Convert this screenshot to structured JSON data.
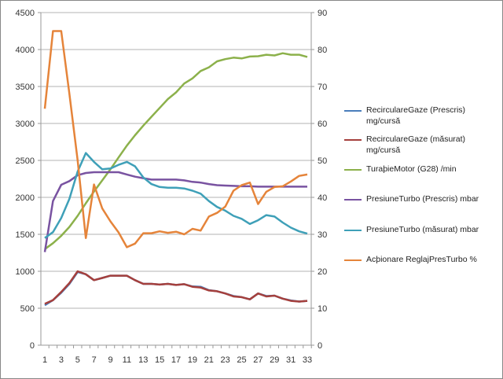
{
  "chart_data": {
    "type": "line",
    "title": "",
    "xlabel": "",
    "ylabel": "",
    "x": [
      1,
      2,
      3,
      4,
      5,
      6,
      7,
      8,
      9,
      10,
      11,
      12,
      13,
      14,
      15,
      16,
      17,
      18,
      19,
      20,
      21,
      22,
      23,
      24,
      25,
      26,
      27,
      28,
      29,
      30,
      31,
      32,
      33
    ],
    "x_tick_labels": [
      "1",
      "3",
      "5",
      "7",
      "9",
      "11",
      "13",
      "15",
      "17",
      "19",
      "21",
      "23",
      "25",
      "27",
      "29",
      "31",
      "33"
    ],
    "ylim": [
      0,
      4500
    ],
    "y_ticks": [
      "0",
      "500",
      "1000",
      "1500",
      "2000",
      "2500",
      "3000",
      "3500",
      "4000",
      "4500"
    ],
    "y2lim": [
      0,
      90
    ],
    "y2_ticks": [
      "0",
      "10",
      "20",
      "30",
      "40",
      "50",
      "60",
      "70",
      "80",
      "90"
    ],
    "grid": true,
    "legend_position": "right",
    "series": [
      {
        "name": "RecirculareGaze (Prescris) mg/cursă",
        "label_lines": [
          "RecirculareGaze (Prescris)",
          "mg/cursă"
        ],
        "axis": "left",
        "color": "#4a7ebb",
        "values": [
          540,
          610,
          710,
          830,
          990,
          960,
          880,
          910,
          940,
          940,
          940,
          880,
          830,
          830,
          820,
          830,
          815,
          825,
          795,
          790,
          745,
          730,
          700,
          665,
          650,
          620,
          700,
          665,
          670,
          630,
          605,
          590,
          600
        ]
      },
      {
        "name": "RecirculareGaze (măsurat) mg/cursă",
        "label_lines": [
          "RecirculareGaze (măsurat)",
          "mg/cursă"
        ],
        "axis": "left",
        "color": "#a5403d",
        "values": [
          560,
          610,
          720,
          840,
          1000,
          960,
          880,
          910,
          940,
          940,
          940,
          880,
          830,
          830,
          820,
          830,
          815,
          825,
          790,
          780,
          740,
          730,
          700,
          660,
          650,
          620,
          700,
          660,
          670,
          630,
          600,
          590,
          600
        ]
      },
      {
        "name": "TuraþieMotor (G28)  /min",
        "label_lines": [
          "TuraþieMotor (G28)  /min"
        ],
        "axis": "left",
        "color": "#8cb14b",
        "values": [
          1300,
          1380,
          1480,
          1600,
          1750,
          1920,
          2080,
          2230,
          2380,
          2540,
          2700,
          2840,
          2970,
          3090,
          3210,
          3330,
          3420,
          3540,
          3610,
          3710,
          3760,
          3840,
          3870,
          3890,
          3880,
          3905,
          3910,
          3930,
          3920,
          3950,
          3930,
          3930,
          3900
        ]
      },
      {
        "name": "PresiuneTurbo (Prescris)  mbar",
        "label_lines": [
          "PresiuneTurbo (Prescris)  mbar"
        ],
        "axis": "left",
        "color": "#7953a1",
        "values": [
          1260,
          1950,
          2170,
          2220,
          2300,
          2330,
          2340,
          2340,
          2340,
          2340,
          2310,
          2280,
          2260,
          2240,
          2240,
          2240,
          2240,
          2230,
          2210,
          2200,
          2180,
          2165,
          2160,
          2155,
          2150,
          2150,
          2145,
          2145,
          2145,
          2145,
          2145,
          2145,
          2145
        ]
      },
      {
        "name": "PresiuneTurbo (măsurat)  mbar",
        "label_lines": [
          "PresiuneTurbo (măsurat)  mbar"
        ],
        "axis": "left",
        "color": "#3fa0b8",
        "values": [
          1450,
          1530,
          1720,
          1980,
          2350,
          2600,
          2480,
          2380,
          2390,
          2440,
          2480,
          2420,
          2270,
          2180,
          2140,
          2130,
          2130,
          2120,
          2090,
          2050,
          1950,
          1870,
          1820,
          1750,
          1710,
          1640,
          1690,
          1760,
          1740,
          1660,
          1590,
          1540,
          1510
        ]
      },
      {
        "name": "Acþionare ReglajPresTurbo  %",
        "label_lines": [
          "Acþionare ReglajPresTurbo  %"
        ],
        "axis": "right",
        "color": "#e5843a",
        "values": [
          64,
          85,
          85,
          68,
          50,
          29,
          43.5,
          37,
          33.5,
          30.5,
          26.5,
          27.5,
          30.3,
          30.3,
          30.8,
          30.4,
          30.7,
          30,
          31.5,
          31,
          34.8,
          35.8,
          37.5,
          41.8,
          43.3,
          44,
          38.2,
          41.5,
          42.8,
          43,
          44.3,
          45.8,
          46.2
        ]
      }
    ]
  }
}
